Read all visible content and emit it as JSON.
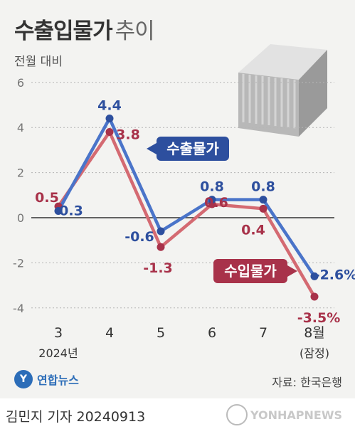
{
  "header": {
    "title_bold": "수출입물가",
    "title_light": "추이",
    "subtitle": "전월 대비"
  },
  "chart_data": {
    "type": "line",
    "categories": [
      "3",
      "4",
      "5",
      "6",
      "7",
      "8월"
    ],
    "category_sublabels": [
      "2024년",
      "",
      "",
      "",
      "",
      "(잠정)"
    ],
    "yticks": [
      6,
      4,
      2,
      0,
      -2,
      -4
    ],
    "ylim": [
      -4,
      6
    ],
    "series": [
      {
        "name": "수출물가",
        "color": "#4a74c9",
        "values": [
          0.3,
          4.4,
          -0.6,
          0.8,
          0.8,
          -2.6
        ],
        "labels": [
          "0.3",
          "4.4",
          "-0.6",
          "0.8",
          "0.8",
          "-2.6%"
        ]
      },
      {
        "name": "수입물가",
        "color": "#d46a72",
        "values": [
          0.5,
          3.8,
          -1.3,
          0.6,
          0.4,
          -3.5
        ],
        "labels": [
          "0.5",
          "3.8",
          "-1.3",
          "0.6",
          "0.4",
          "-3.5%"
        ]
      }
    ]
  },
  "footer": {
    "byline": "김민지 기자  20240913",
    "source": "자료: 한국은행",
    "logo": "연합뉴스",
    "watermark": "YONHAPNEWS"
  },
  "colors": {
    "export": "#4a74c9",
    "import": "#d46a72",
    "export_dot": "#2d4f9e",
    "import_dot": "#a8324a"
  }
}
